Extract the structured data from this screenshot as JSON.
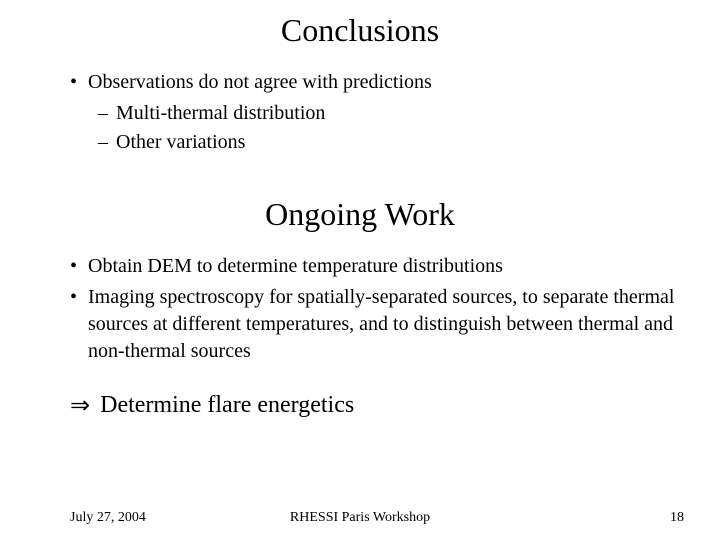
{
  "title1": "Conclusions",
  "bullets1": {
    "item1": "Observations do not agree with predictions",
    "sub1": "Multi-thermal distribution",
    "sub2": "Other variations"
  },
  "title2": "Ongoing Work",
  "bullets2": {
    "item1": "Obtain DEM to determine temperature distributions",
    "item2": "Imaging spectroscopy for spatially-separated sources, to separate thermal sources at different temperatures, and to distinguish between thermal and non-thermal sources"
  },
  "arrow_symbol": "⇒",
  "arrow_text": "Determine flare energetics",
  "footer": {
    "date": "July 27, 2004",
    "center": "RHESSI Paris Workshop",
    "page": "18"
  },
  "colors": {
    "background": "#ffffff",
    "text": "#000000"
  },
  "typography": {
    "title_fontsize": 32,
    "body_fontsize": 20,
    "arrow_fontsize": 24,
    "footer_fontsize": 14,
    "font_family": "Times New Roman"
  }
}
